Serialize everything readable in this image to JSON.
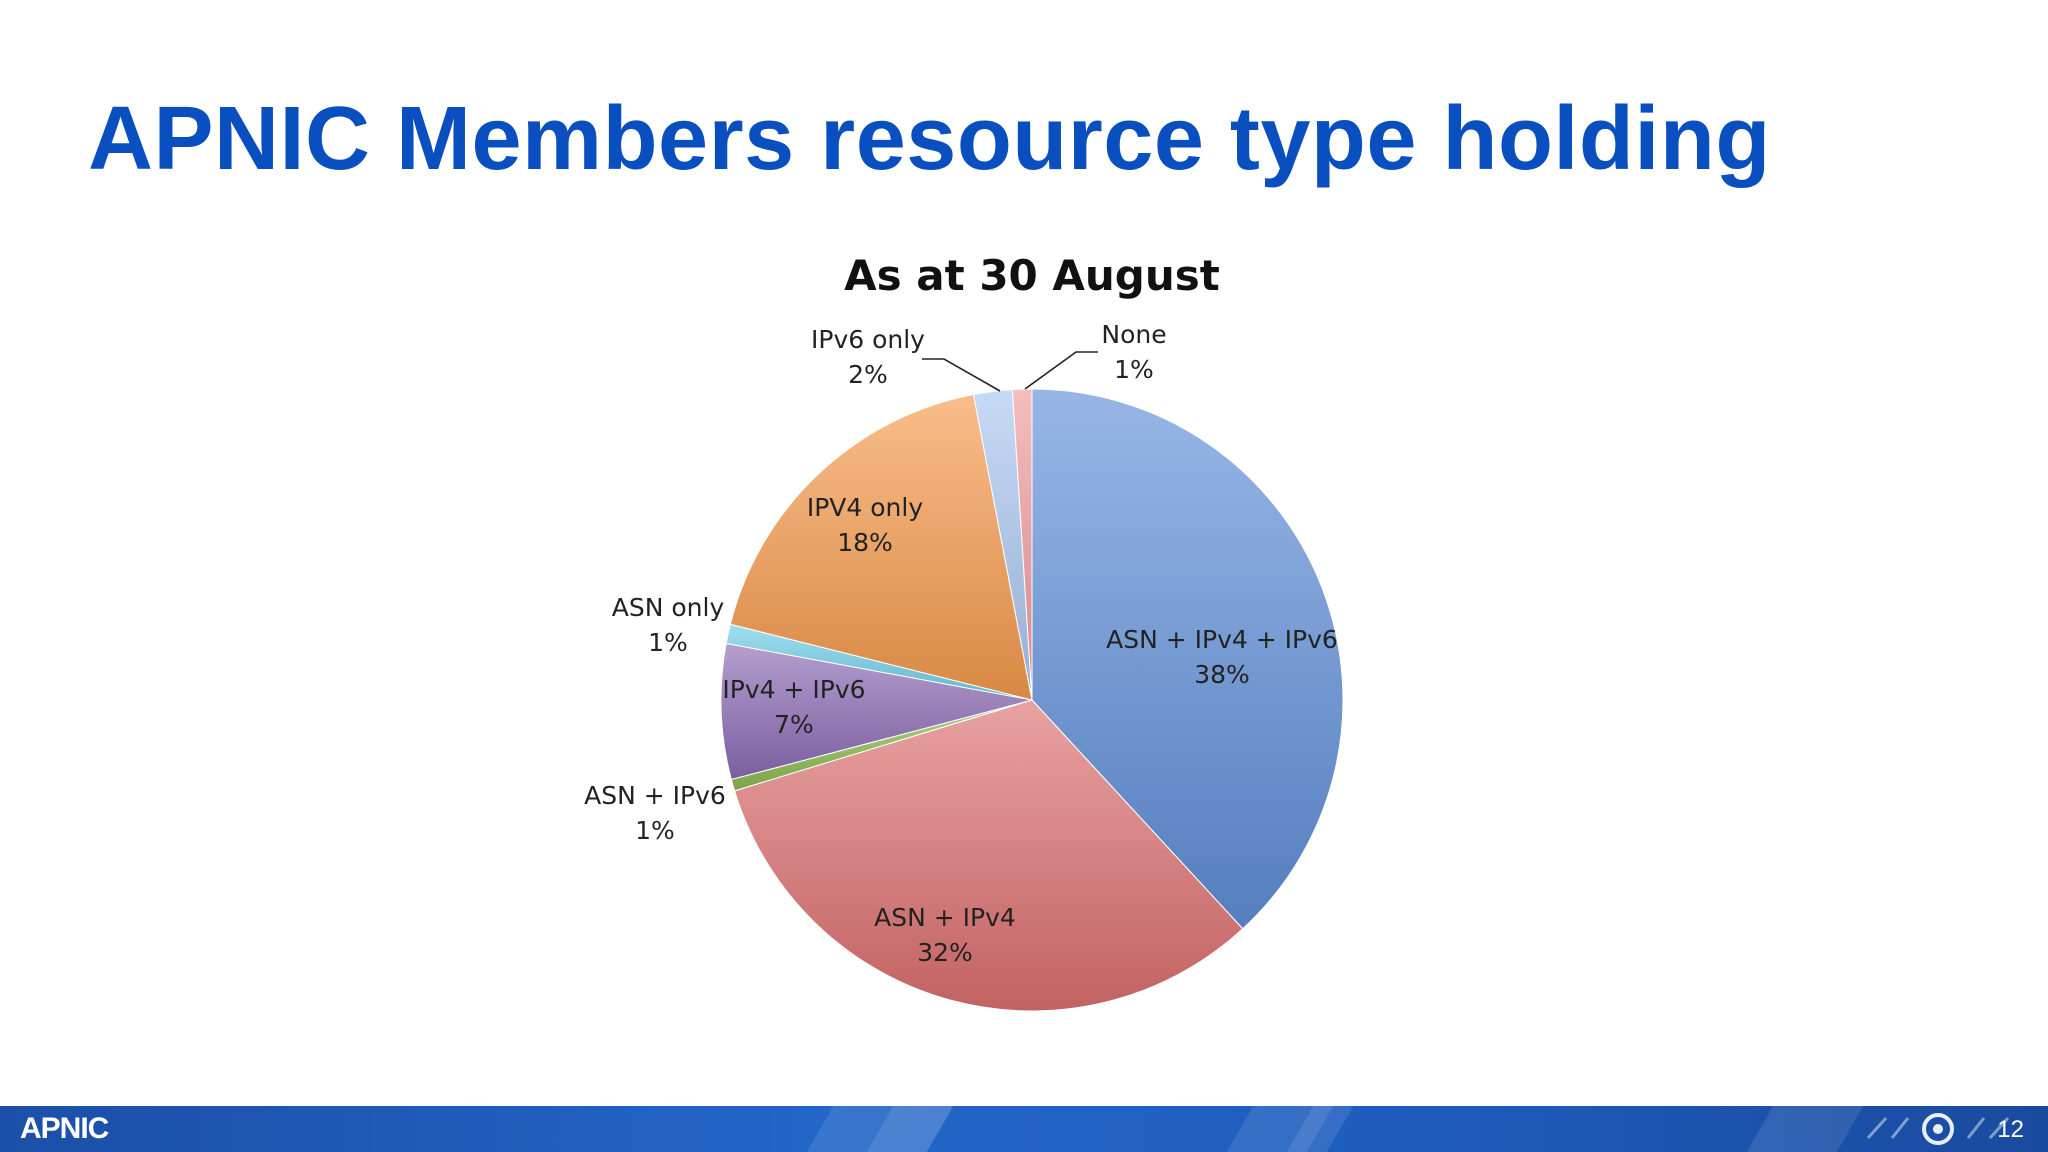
{
  "slide": {
    "title": "APNIC Members resource type holding",
    "footer_logo": "APNIC",
    "page_number": "12"
  },
  "chart_data": {
    "type": "pie",
    "title": "As at 30 August",
    "slices": [
      {
        "label": "ASN + IPv4 + IPv6",
        "percent_label": "38%",
        "value": 38,
        "color": "#5f8fd8"
      },
      {
        "label": "ASN + IPv4",
        "percent_label": "32%",
        "value": 32,
        "color": "#dc6f6f"
      },
      {
        "label": "ASN + IPv6",
        "percent_label": "1%",
        "value": 0.6,
        "color": "#8cba4f"
      },
      {
        "label": "IPv4 + IPv6",
        "percent_label": "7%",
        "value": 7,
        "color": "#8b6bb5"
      },
      {
        "label": "ASN only",
        "percent_label": "1%",
        "value": 1,
        "color": "#6fcde8"
      },
      {
        "label": "IPV4 only",
        "percent_label": "18%",
        "value": 18,
        "color": "#f59a4c"
      },
      {
        "label": "IPv6 only",
        "percent_label": "2%",
        "value": 2,
        "color": "#a9c6f0"
      },
      {
        "label": "None",
        "percent_label": "1%",
        "value": 1,
        "color": "#ef9a9e"
      }
    ]
  },
  "colors": {
    "title": "#0a4fbf",
    "footer": "#2266c8"
  }
}
